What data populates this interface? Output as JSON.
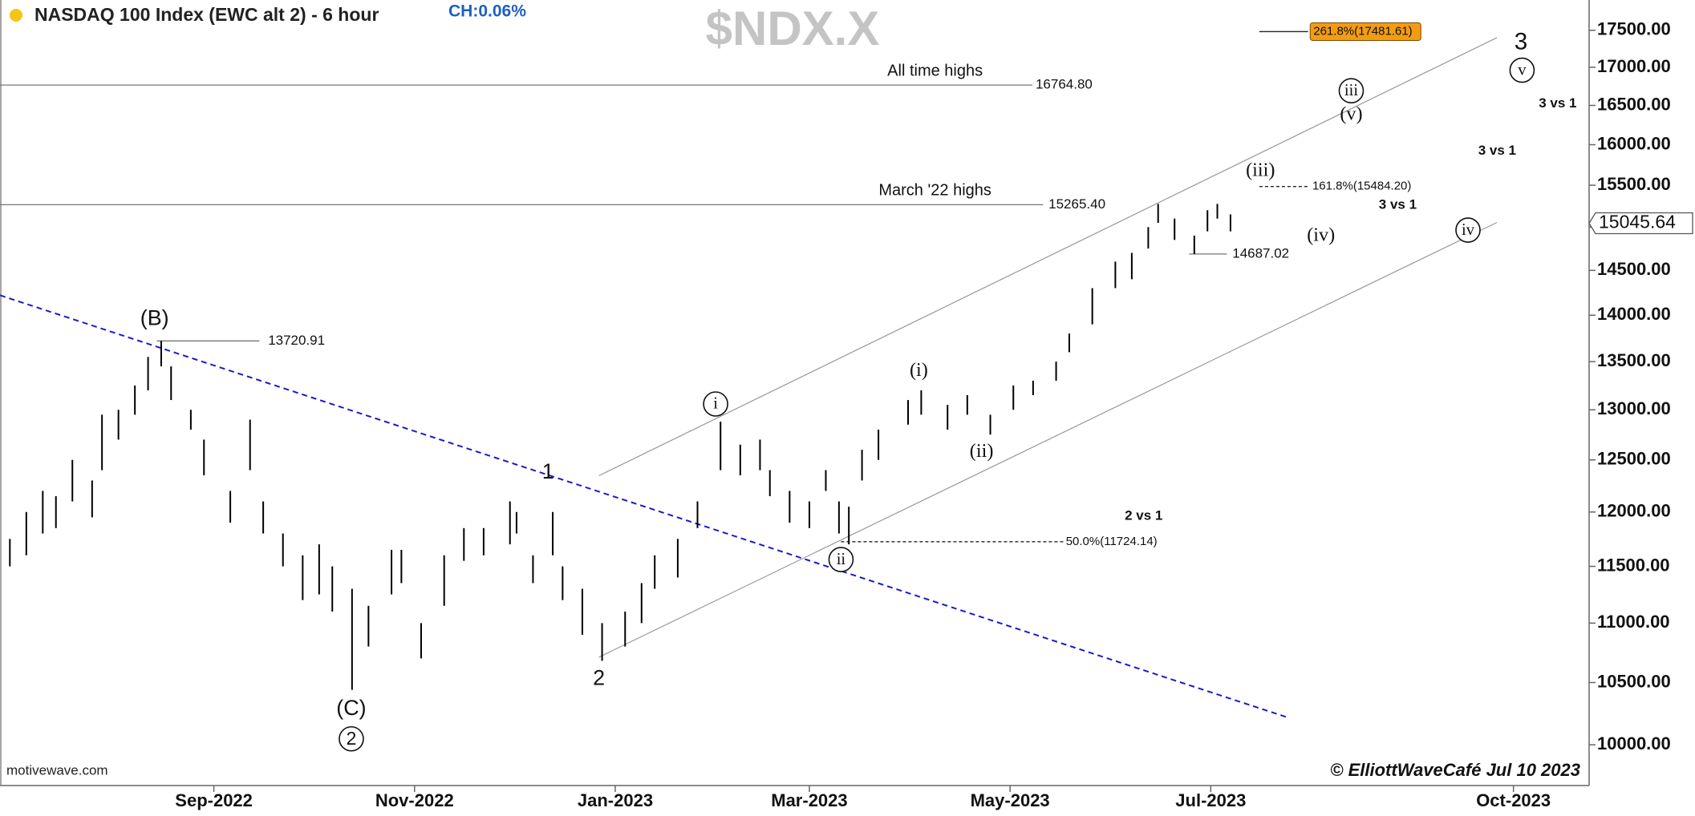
{
  "chart_data": {
    "type": "ohlc",
    "title": "NASDAQ 100 Index (EWC alt 2) - 6 hour",
    "change": "CH:0.06%",
    "symbol": "$NDX.X",
    "source": "motivewave.com",
    "credit": "© ElliottWaveCafé Jul 10 2023",
    "log": true,
    "ylim": [
      9686,
      17920
    ],
    "yticks": [
      {
        "value": 10000,
        "label": "10000.00"
      },
      {
        "value": 10500,
        "label": "10500.00"
      },
      {
        "value": 11000,
        "label": "11000.00"
      },
      {
        "value": 11500,
        "label": "11500.00"
      },
      {
        "value": 12000,
        "label": "12000.00"
      },
      {
        "value": 12500,
        "label": "12500.00"
      },
      {
        "value": 13000,
        "label": "13000.00"
      },
      {
        "value": 13500,
        "label": "13500.00"
      },
      {
        "value": 14000,
        "label": "14000.00"
      },
      {
        "value": 14500,
        "label": "14500.00"
      },
      {
        "value": 15000,
        "label": "15000.00"
      },
      {
        "value": 15500,
        "label": "15500.00"
      },
      {
        "value": 16000,
        "label": "16000.00"
      },
      {
        "value": 16500,
        "label": "16500.00"
      },
      {
        "value": 17000,
        "label": "17000.00"
      },
      {
        "value": 17500,
        "label": "17500.00"
      }
    ],
    "xlim": [
      "2022-06-28",
      "2023-10-24"
    ],
    "xticks": [
      {
        "value": "2022-09-01",
        "label": "Sep-2022"
      },
      {
        "value": "2022-11-01",
        "label": "Nov-2022"
      },
      {
        "value": "2023-01-01",
        "label": "Jan-2023"
      },
      {
        "value": "2023-03-01",
        "label": "Mar-2023"
      },
      {
        "value": "2023-05-01",
        "label": "May-2023"
      },
      {
        "value": "2023-07-01",
        "label": "Jul-2023"
      },
      {
        "value": "2023-10-01",
        "label": "Oct-2023"
      }
    ],
    "bar_color": "#000000",
    "bars": {
      "x": [
        "2022-07-01",
        "2022-07-06",
        "2022-07-11",
        "2022-07-15",
        "2022-07-20",
        "2022-07-26",
        "2022-07-29",
        "2022-08-03",
        "2022-08-08",
        "2022-08-12",
        "2022-08-16",
        "2022-08-19",
        "2022-08-25",
        "2022-08-29",
        "2022-09-06",
        "2022-09-12",
        "2022-09-16",
        "2022-09-22",
        "2022-09-28",
        "2022-10-03",
        "2022-10-07",
        "2022-10-13",
        "2022-10-18",
        "2022-10-25",
        "2022-10-28",
        "2022-11-03",
        "2022-11-10",
        "2022-11-16",
        "2022-11-22",
        "2022-11-30",
        "2022-12-02",
        "2022-12-07",
        "2022-12-13",
        "2022-12-16",
        "2022-12-22",
        "2022-12-28",
        "2023-01-04",
        "2023-01-09",
        "2023-01-13",
        "2023-01-20",
        "2023-01-26",
        "2023-02-02",
        "2023-02-08",
        "2023-02-14",
        "2023-02-17",
        "2023-02-23",
        "2023-03-01",
        "2023-03-06",
        "2023-03-10",
        "2023-03-13",
        "2023-03-17",
        "2023-03-22",
        "2023-03-31",
        "2023-04-04",
        "2023-04-12",
        "2023-04-18",
        "2023-04-25",
        "2023-05-02",
        "2023-05-08",
        "2023-05-15",
        "2023-05-19",
        "2023-05-26",
        "2023-06-02",
        "2023-06-07",
        "2023-06-12",
        "2023-06-15",
        "2023-06-20",
        "2023-06-26",
        "2023-06-30",
        "2023-07-03",
        "2023-07-07"
      ],
      "high": [
        11750,
        12000,
        12200,
        12150,
        12500,
        12300,
        12950,
        13000,
        13250,
        13550,
        13720.91,
        13450,
        13000,
        12700,
        12200,
        12900,
        12100,
        11800,
        11600,
        11700,
        11500,
        11300,
        11150,
        11650,
        11650,
        11000,
        11600,
        11850,
        11850,
        12100,
        12000,
        11600,
        12000,
        11500,
        11300,
        11000,
        11100,
        11350,
        11600,
        11750,
        12100,
        12880,
        12650,
        12700,
        12400,
        12200,
        12100,
        12400,
        12100,
        12050,
        12600,
        12800,
        13100,
        13200,
        13050,
        13150,
        12950,
        13250,
        13300,
        13500,
        13800,
        14300,
        14600,
        14700,
        15000,
        15275,
        15100,
        14900,
        15200,
        15275,
        15150
      ],
      "low": [
        11500,
        11600,
        11800,
        11850,
        12100,
        11950,
        12400,
        12700,
        12950,
        13200,
        13450,
        13100,
        12800,
        12350,
        11900,
        12400,
        11800,
        11500,
        11200,
        11250,
        11100,
        10440,
        10800,
        11250,
        11350,
        10700,
        11150,
        11550,
        11600,
        11700,
        11800,
        11350,
        11600,
        11200,
        10900,
        10680,
        10800,
        11000,
        11300,
        11400,
        11850,
        12400,
        12350,
        12400,
        12150,
        11900,
        11850,
        12200,
        11800,
        11700,
        12300,
        12500,
        12850,
        12950,
        12800,
        12950,
        12750,
        13000,
        13150,
        13300,
        13600,
        13900,
        14300,
        14400,
        14750,
        15050,
        14850,
        14687.02,
        14950,
        15100,
        14950
      ]
    },
    "last_price": {
      "value": 15045.64,
      "label": "15045.64"
    },
    "levels": [
      {
        "value": 16764.8,
        "label": "16764.80",
        "note": "All time highs"
      },
      {
        "value": 15265.4,
        "label": "15265.40",
        "note": "March '22 highs"
      },
      {
        "value": 13720.91,
        "label": "13720.91"
      },
      {
        "value": 14687.02,
        "label": "14687.02"
      }
    ],
    "fib_levels": [
      {
        "value": 17481.61,
        "label": "261.8%(17481.61)"
      },
      {
        "value": 15484.2,
        "label": "161.8%(15484.20)"
      },
      {
        "value": 11724.14,
        "label": "50.0%(11724.14)"
      }
    ],
    "trendline": {
      "color": "#1a1acc",
      "x": [
        "2022-06-28",
        "2023-07-24"
      ],
      "y": [
        14220,
        10220
      ]
    },
    "channel_upper": {
      "color": "#999999",
      "x": [
        "2022-12-27",
        "2023-09-26"
      ],
      "y": [
        12346,
        17400
      ]
    },
    "channel_lower": {
      "color": "#999999",
      "x": [
        "2022-12-27",
        "2023-09-26"
      ],
      "y": [
        10710,
        15055
      ]
    },
    "wave_labels": [
      {
        "text": "(B)"
      },
      {
        "text": "(C)"
      },
      {
        "text": "2",
        "circled": true
      },
      {
        "text": "1"
      },
      {
        "text": "2"
      },
      {
        "text": "i",
        "circled": true
      },
      {
        "text": "ii",
        "circled": true
      },
      {
        "text": "(i)"
      },
      {
        "text": "(ii)"
      },
      {
        "text": "(iii)"
      },
      {
        "text": "(iv)"
      },
      {
        "text": "(v)"
      },
      {
        "text": "iii",
        "circled": true
      },
      {
        "text": "3"
      },
      {
        "text": "v",
        "circled": true
      },
      {
        "text": "iv",
        "circled": true
      }
    ],
    "notes": [
      "3 vs 1",
      "3 vs 1",
      "3 vs 1",
      "2 vs 1"
    ]
  }
}
